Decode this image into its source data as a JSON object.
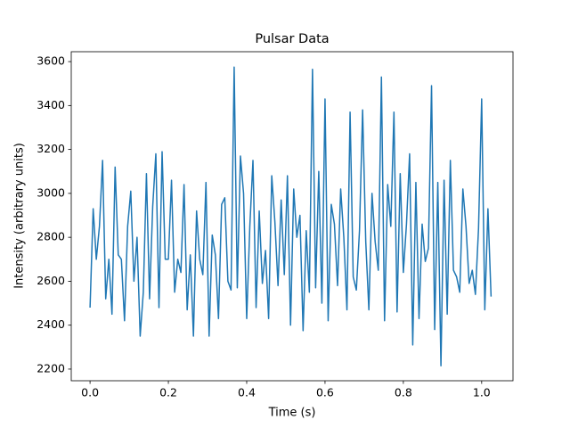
{
  "chart_data": {
    "type": "line",
    "title": "Pulsar Data",
    "x_label": "Time (s)",
    "y_label": "Intensity (arbitrary units)",
    "color": "#1f77b4",
    "grid": false,
    "xlim": [
      -0.048,
      1.08
    ],
    "ylim": [
      2147,
      3645
    ],
    "xticks": [
      {
        "value": 0,
        "label": "0.0"
      },
      {
        "value": 0.2,
        "label": "0.2"
      },
      {
        "value": 0.4,
        "label": "0.4"
      },
      {
        "value": 0.6,
        "label": "0.6"
      },
      {
        "value": 0.8,
        "label": "0.8"
      },
      {
        "value": 1.0,
        "label": "1.0"
      }
    ],
    "yticks": [
      2200,
      2400,
      2600,
      2800,
      3000,
      3200,
      3400,
      3600
    ],
    "x": [
      0,
      0.008,
      0.016,
      0.024,
      0.032,
      0.04,
      0.048,
      0.056,
      0.064,
      0.072,
      0.08,
      0.088,
      0.096,
      0.104,
      0.112,
      0.12,
      0.128,
      0.136,
      0.144,
      0.152,
      0.16,
      0.168,
      0.176,
      0.184,
      0.192,
      0.2,
      0.208,
      0.216,
      0.224,
      0.232,
      0.24,
      0.248,
      0.256,
      0.264,
      0.272,
      0.28,
      0.288,
      0.296,
      0.304,
      0.312,
      0.32,
      0.328,
      0.336,
      0.344,
      0.352,
      0.36,
      0.368,
      0.376,
      0.384,
      0.392,
      0.4,
      0.408,
      0.416,
      0.424,
      0.432,
      0.44,
      0.448,
      0.456,
      0.464,
      0.472,
      0.48,
      0.488,
      0.496,
      0.504,
      0.512,
      0.52,
      0.528,
      0.536,
      0.544,
      0.552,
      0.56,
      0.568,
      0.576,
      0.584,
      0.592,
      0.6,
      0.608,
      0.616,
      0.624,
      0.632,
      0.64,
      0.648,
      0.656,
      0.664,
      0.672,
      0.68,
      0.688,
      0.696,
      0.704,
      0.712,
      0.72,
      0.728,
      0.736,
      0.744,
      0.752,
      0.76,
      0.768,
      0.776,
      0.784,
      0.792,
      0.8,
      0.808,
      0.816,
      0.824,
      0.832,
      0.84,
      0.848,
      0.856,
      0.864,
      0.872,
      0.88,
      0.888,
      0.896,
      0.904,
      0.912,
      0.92,
      0.928,
      0.936,
      0.944,
      0.952,
      0.96,
      0.968,
      0.976,
      0.984,
      0.992,
      1.0,
      1.008,
      1.016,
      1.024
    ],
    "values": [
      2480,
      2930,
      2700,
      2850,
      3150,
      2520,
      2700,
      2450,
      3120,
      2720,
      2700,
      2420,
      2850,
      3010,
      2600,
      2800,
      2350,
      2550,
      3090,
      2520,
      2940,
      3180,
      2480,
      3190,
      2700,
      2700,
      3060,
      2550,
      2700,
      2640,
      3040,
      2470,
      2720,
      2350,
      2920,
      2700,
      2630,
      3050,
      2350,
      2810,
      2720,
      2430,
      2950,
      2980,
      2600,
      2560,
      3575,
      2570,
      3170,
      3000,
      2430,
      2850,
      3150,
      2480,
      2920,
      2590,
      2740,
      2430,
      3080,
      2870,
      2580,
      2970,
      2630,
      3080,
      2400,
      3020,
      2800,
      2900,
      2375,
      2830,
      2550,
      3565,
      2570,
      3100,
      2500,
      3430,
      2420,
      2950,
      2860,
      2580,
      3020,
      2800,
      2470,
      3370,
      2620,
      2560,
      2830,
      3380,
      2780,
      2470,
      3000,
      2780,
      2650,
      3530,
      2420,
      3040,
      2850,
      3370,
      2460,
      3090,
      2640,
      2860,
      3180,
      2310,
      3050,
      2430,
      2860,
      2690,
      2750,
      3490,
      2380,
      3050,
      2215,
      3060,
      2450,
      3150,
      2650,
      2620,
      2550,
      3020,
      2850,
      2590,
      2650,
      2540,
      2840,
      3430,
      2470,
      2930,
      2530
    ]
  }
}
